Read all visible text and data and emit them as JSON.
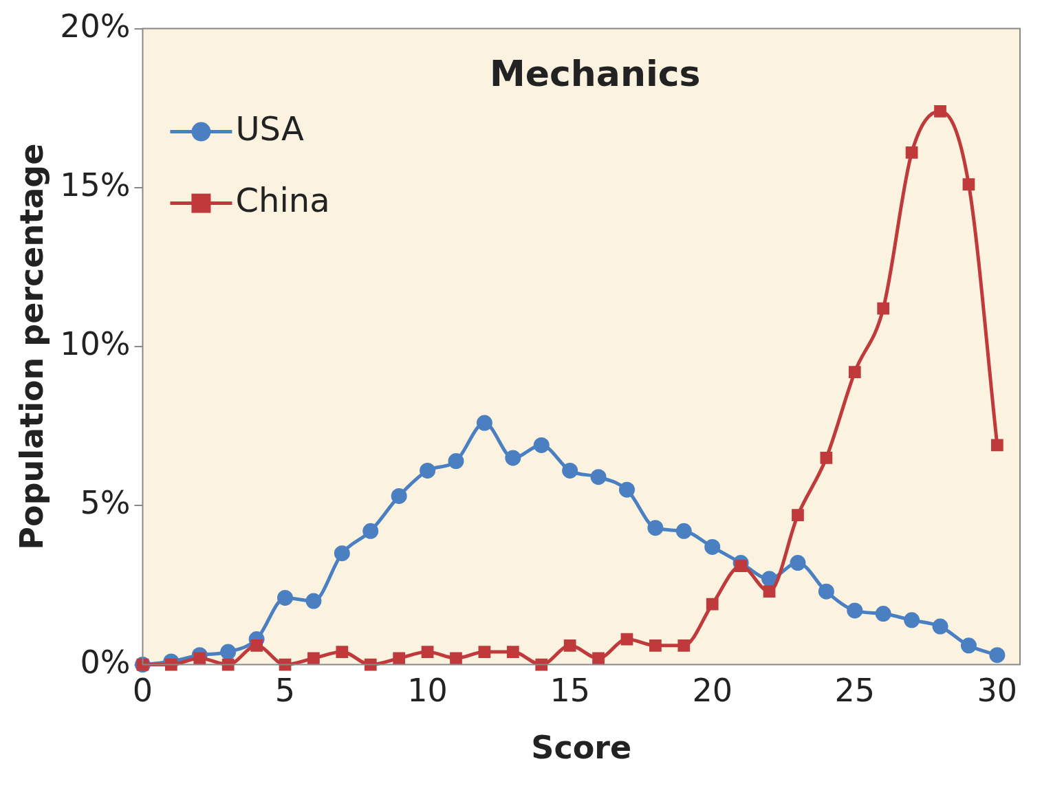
{
  "chart_data": {
    "type": "line",
    "title": "Mechanics",
    "xlabel": "Score",
    "ylabel": "Population percentage",
    "x": [
      0,
      1,
      2,
      3,
      4,
      5,
      6,
      7,
      8,
      9,
      10,
      11,
      12,
      13,
      14,
      15,
      16,
      17,
      18,
      19,
      20,
      21,
      22,
      23,
      24,
      25,
      26,
      27,
      28,
      29,
      30
    ],
    "series": [
      {
        "name": "USA",
        "color": "#4a7fc1",
        "marker": "circle",
        "values": [
          0,
          0.1,
          0.3,
          0.4,
          0.8,
          2.1,
          2.0,
          3.5,
          4.2,
          5.3,
          6.1,
          6.4,
          7.6,
          6.5,
          6.9,
          6.1,
          5.9,
          5.5,
          4.3,
          4.2,
          3.7,
          3.2,
          2.7,
          3.2,
          2.3,
          1.7,
          1.6,
          1.4,
          1.2,
          0.6,
          0.3
        ]
      },
      {
        "name": "China",
        "color": "#c0393b",
        "marker": "square",
        "values": [
          0,
          0,
          0.2,
          0,
          0.6,
          0,
          0.2,
          0.4,
          0,
          0.2,
          0.4,
          0.2,
          0.4,
          0.4,
          0,
          0.6,
          0.2,
          0.8,
          0.6,
          0.6,
          1.9,
          3.1,
          2.3,
          4.7,
          6.5,
          9.2,
          11.2,
          16.1,
          17.4,
          15.1,
          6.9
        ]
      }
    ],
    "xlim": [
      0,
      30.8
    ],
    "xticks": [
      0,
      5,
      10,
      15,
      20,
      25,
      30
    ],
    "ylim": [
      0,
      20
    ],
    "yticks": [
      {
        "value": 0,
        "label": "0%"
      },
      {
        "value": 5,
        "label": "5%"
      },
      {
        "value": 10,
        "label": "10%"
      },
      {
        "value": 15,
        "label": "15%"
      },
      {
        "value": 20,
        "label": "20%"
      }
    ],
    "grid": false,
    "legend": "top left"
  }
}
